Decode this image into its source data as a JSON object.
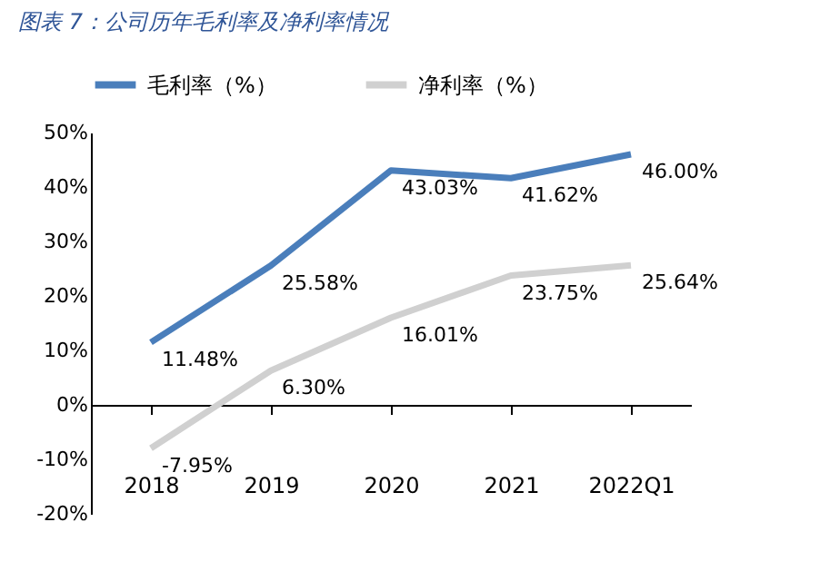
{
  "chart_data": {
    "type": "line",
    "title": "图表 7：公司历年毛利率及净利率情况",
    "categories": [
      "2018",
      "2019",
      "2020",
      "2021",
      "2022Q1"
    ],
    "series": [
      {
        "name": "毛利率（%）",
        "color": "#4a7ebb",
        "values": [
          11.48,
          25.58,
          43.03,
          41.62,
          46.0
        ],
        "value_labels": [
          "11.48%",
          "25.58%",
          "43.03%",
          "41.62%",
          "46.00%"
        ]
      },
      {
        "name": "净利率（%）",
        "color": "#d0d0d0",
        "values": [
          -7.95,
          6.3,
          16.01,
          23.75,
          25.64
        ],
        "value_labels": [
          "-7.95%",
          "6.30%",
          "16.01%",
          "23.75%",
          "25.64%"
        ]
      }
    ],
    "ylim": [
      -20,
      50
    ],
    "yticks": [
      {
        "value": -20,
        "label": "-20%"
      },
      {
        "value": -10,
        "label": "-10%"
      },
      {
        "value": 0,
        "label": "0%"
      },
      {
        "value": 10,
        "label": "10%"
      },
      {
        "value": 20,
        "label": "20%"
      },
      {
        "value": 30,
        "label": "30%"
      },
      {
        "value": 40,
        "label": "40%"
      },
      {
        "value": 50,
        "label": "50%"
      }
    ],
    "legend": "top",
    "marker": "none",
    "line_style": "solid"
  }
}
